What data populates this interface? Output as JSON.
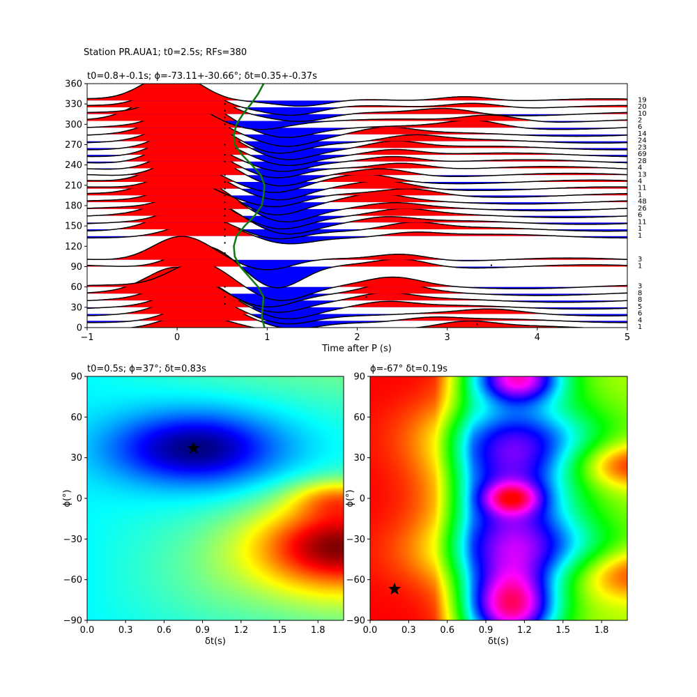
{
  "suptitle": "Station PR.AUA1; t0=2.5s; RFs=380",
  "chart_data": [
    {
      "type": "line",
      "subtype": "receiver-function wiggle traces sorted by back-azimuth",
      "title": "t0=0.8+-0.1s; ϕ=-73.11+-30.66°; δt=0.35+-0.37s",
      "xlabel": "Time after P (s)",
      "ylabel": "",
      "xlim": [
        -1,
        5
      ],
      "ylim": [
        0,
        360
      ],
      "xticks": [
        -1,
        0,
        1,
        2,
        3,
        4,
        5
      ],
      "yticks": [
        0,
        30,
        60,
        90,
        120,
        150,
        180,
        210,
        240,
        270,
        300,
        330,
        360
      ],
      "fill_positive": "#ff0000",
      "fill_negative": "#0000ff",
      "traces": [
        {
          "baz": 0,
          "count": "1",
          "a0": 0.55,
          "c0": 0.15,
          "a1": 0.25,
          "c1": 1.2,
          "a2": 0.25,
          "c2": 3.2
        },
        {
          "baz": 10,
          "count": "4",
          "a0": 0.8,
          "c0": 0.3,
          "a1": 0.35,
          "c1": 1.25,
          "a2": 0.15,
          "c2": 2.8
        },
        {
          "baz": 20,
          "count": "6",
          "a0": 0.85,
          "c0": 0.2,
          "a1": 0.4,
          "c1": 1.2,
          "a2": 0.15,
          "c2": 3.5
        },
        {
          "baz": 30,
          "count": "5",
          "a0": 0.95,
          "c0": 0.25,
          "a1": 0.45,
          "c1": 1.2,
          "a2": 0.25,
          "c2": 2.3
        },
        {
          "baz": 40,
          "count": "8",
          "a0": 1.0,
          "c0": 0.15,
          "a1": 0.45,
          "c1": 1.1,
          "a2": 0.3,
          "c2": 2.3
        },
        {
          "baz": 50,
          "count": "8",
          "a0": 1.1,
          "c0": 0.0,
          "a1": 0.5,
          "c1": 1.0,
          "a2": 0.4,
          "c2": 2.4
        },
        {
          "baz": 60,
          "count": "3",
          "a0": 1.1,
          "c0": 0.25,
          "a1": 0.55,
          "c1": 1.15,
          "a2": 0.35,
          "c2": 2.4
        },
        {
          "baz": 90,
          "count": "1",
          "a0": 1.0,
          "c0": 0.3,
          "a1": 1.0,
          "c1": 1.1,
          "a2": 0.35,
          "c2": 2.5
        },
        {
          "baz": 100,
          "count": "3",
          "a0": 1.1,
          "c0": 0.05,
          "a1": 0.5,
          "c1": 1.0,
          "a2": 0.3,
          "c2": 2.5
        },
        {
          "baz": 135,
          "count": "1",
          "a0": 0.6,
          "c0": 0.3,
          "a1": 0.35,
          "c1": 1.2,
          "a2": 0.2,
          "c2": 2.6
        },
        {
          "baz": 145,
          "count": "1",
          "a0": 0.8,
          "c0": 0.1,
          "a1": 0.4,
          "c1": 1.1,
          "a2": 0.3,
          "c2": 2.6
        },
        {
          "baz": 155,
          "count": "11",
          "a0": 0.95,
          "c0": 0.3,
          "a1": 0.45,
          "c1": 1.2,
          "a2": 0.25,
          "c2": 2.3
        },
        {
          "baz": 165,
          "count": "6",
          "a0": 0.95,
          "c0": 0.15,
          "a1": 0.5,
          "c1": 1.15,
          "a2": 0.25,
          "c2": 2.5
        },
        {
          "baz": 175,
          "count": "26",
          "a0": 1.0,
          "c0": 0.3,
          "a1": 0.5,
          "c1": 1.2,
          "a2": 0.2,
          "c2": 2.4
        },
        {
          "baz": 185,
          "count": "48",
          "a0": 1.05,
          "c0": 0.2,
          "a1": 0.5,
          "c1": 1.1,
          "a2": 0.3,
          "c2": 2.2
        },
        {
          "baz": 195,
          "count": "1",
          "a0": 0.9,
          "c0": 0.0,
          "a1": 0.45,
          "c1": 1.1,
          "a2": 0.25,
          "c2": 2.6
        },
        {
          "baz": 205,
          "count": "11",
          "a0": 1.0,
          "c0": 0.15,
          "a1": 0.5,
          "c1": 1.15,
          "a2": 0.3,
          "c2": 2.3
        },
        {
          "baz": 215,
          "count": "4",
          "a0": 1.05,
          "c0": 0.05,
          "a1": 0.5,
          "c1": 1.1,
          "a2": 0.3,
          "c2": 2.1
        },
        {
          "baz": 225,
          "count": "13",
          "a0": 1.1,
          "c0": 0.2,
          "a1": 0.55,
          "c1": 1.15,
          "a2": 0.3,
          "c2": 2.3
        },
        {
          "baz": 235,
          "count": "4",
          "a0": 1.05,
          "c0": 0.15,
          "a1": 0.5,
          "c1": 1.1,
          "a2": 0.3,
          "c2": 2.5
        },
        {
          "baz": 245,
          "count": "28",
          "a0": 1.05,
          "c0": 0.1,
          "a1": 0.5,
          "c1": 1.15,
          "a2": 0.3,
          "c2": 2.4
        },
        {
          "baz": 255,
          "count": "69",
          "a0": 1.05,
          "c0": 0.15,
          "a1": 0.5,
          "c1": 1.2,
          "a2": 0.3,
          "c2": 2.4
        },
        {
          "baz": 265,
          "count": "23",
          "a0": 1.05,
          "c0": 0.2,
          "a1": 0.5,
          "c1": 1.2,
          "a2": 0.35,
          "c2": 2.4
        },
        {
          "baz": 275,
          "count": "24",
          "a0": 1.0,
          "c0": 0.15,
          "a1": 0.5,
          "c1": 1.1,
          "a2": 0.25,
          "c2": 2.6
        },
        {
          "baz": 285,
          "count": "14",
          "a0": 1.0,
          "c0": 0.1,
          "a1": 0.45,
          "c1": 1.2,
          "a2": 0.3,
          "c2": 2.3
        },
        {
          "baz": 295,
          "count": "6",
          "a0": 1.1,
          "c0": 0.2,
          "a1": 0.35,
          "c1": 1.2,
          "a2": 0.3,
          "c2": 3.3
        },
        {
          "baz": 305,
          "count": "2",
          "a0": 1.15,
          "c0": -0.1,
          "a1": 0.3,
          "c1": 0.9,
          "a2": 0.3,
          "c2": 3.5
        },
        {
          "baz": 315,
          "count": "10",
          "a0": 1.2,
          "c0": 0.15,
          "a1": 0.3,
          "c1": 1.4,
          "a2": 0.25,
          "c2": 3.0
        },
        {
          "baz": 325,
          "count": "20",
          "a0": 1.2,
          "c0": 0.05,
          "a1": 0.35,
          "c1": 1.3,
          "a2": 0.25,
          "c2": 3.3
        },
        {
          "baz": 335,
          "count": "19",
          "a0": 1.25,
          "c0": -0.05,
          "a1": 0.3,
          "c1": 1.4,
          "a2": 0.25,
          "c2": 3.2
        }
      ],
      "green_curve": {
        "baz": [
          0,
          15,
          30,
          45,
          60,
          75,
          90,
          105,
          120,
          135,
          150,
          165,
          180,
          195,
          210,
          225,
          240,
          255,
          270,
          285,
          300,
          315,
          330,
          345,
          360
        ],
        "time": [
          0.97,
          0.94,
          0.95,
          0.96,
          0.9,
          0.8,
          0.7,
          0.64,
          0.63,
          0.66,
          0.75,
          0.86,
          0.94,
          0.96,
          0.97,
          0.93,
          0.83,
          0.72,
          0.64,
          0.63,
          0.66,
          0.73,
          0.82,
          0.9,
          0.96
        ]
      },
      "marker_times": [
        0.53,
        3.33,
        3.49,
        2.1,
        1.0
      ]
    },
    {
      "type": "heatmap",
      "title": "t0=0.5s; ϕ=37°; δt=0.83s",
      "xlabel": "δt(s)",
      "ylabel": "ϕ(°)",
      "xlim": [
        0,
        2
      ],
      "ylim": [
        -90,
        90
      ],
      "xticks": [
        "0.0",
        "0.3",
        "0.6",
        "0.9",
        "1.2",
        "1.5",
        "1.8"
      ],
      "yticks": [
        "−90",
        "−60",
        "−30",
        "0",
        "30",
        "60",
        "90"
      ],
      "colormap": "jet",
      "best_fit": {
        "dt": 0.83,
        "phi": 37
      }
    },
    {
      "type": "heatmap",
      "title": "ϕ=-67° δt=0.19s",
      "xlabel": "δt(s)",
      "ylabel": "ϕ(°)",
      "xlim": [
        0,
        2
      ],
      "ylim": [
        -90,
        90
      ],
      "xticks": [
        "0.0",
        "0.3",
        "0.6",
        "0.9",
        "1.2",
        "1.5",
        "1.8"
      ],
      "yticks": [
        "−90",
        "−60",
        "−30",
        "0",
        "30",
        "60",
        "90"
      ],
      "colormap": "hsv",
      "best_fit": {
        "dt": 0.19,
        "phi": -67
      }
    }
  ]
}
